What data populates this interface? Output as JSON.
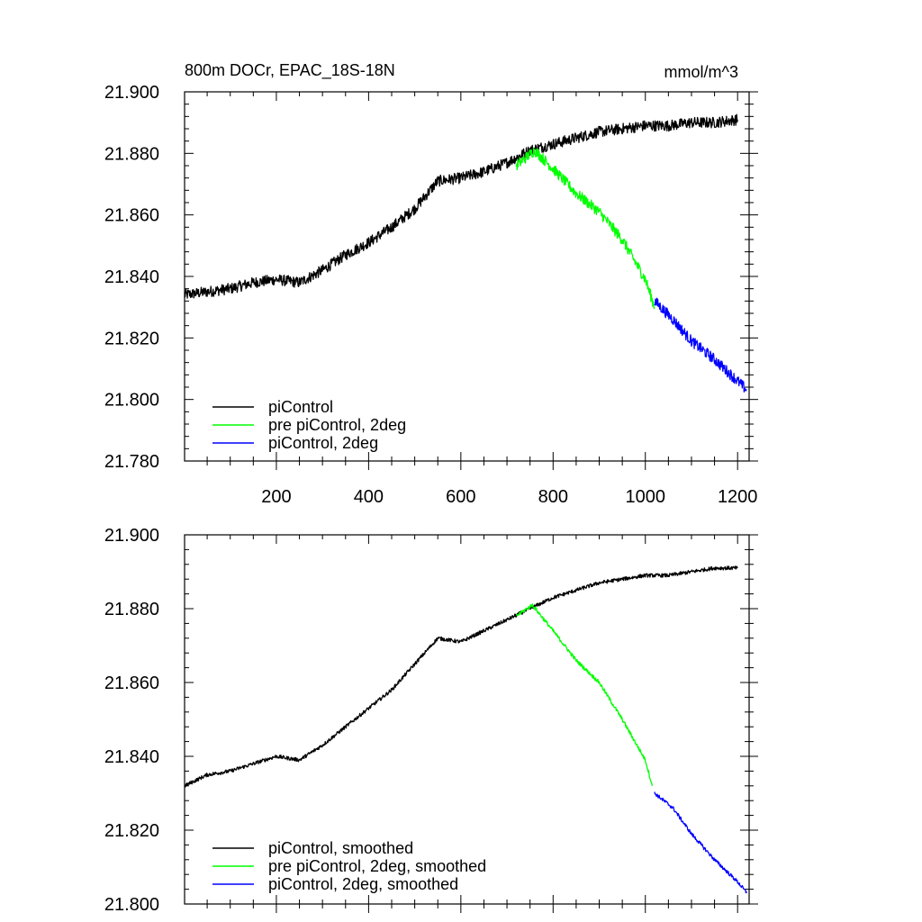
{
  "chart_data": [
    {
      "type": "line",
      "title_left": "800m DOCr, EPAC_18S-18N",
      "title_right": "mmol/m^3",
      "xlabel": "",
      "ylabel": "",
      "xlim": [
        1,
        1225
      ],
      "ylim": [
        21.78,
        21.9
      ],
      "x_ticks": [
        200,
        400,
        600,
        800,
        1000,
        1200
      ],
      "x_tick_labels": [
        "200",
        "400",
        "600",
        "800",
        "1000",
        "1200"
      ],
      "y_ticks": [
        21.78,
        21.8,
        21.82,
        21.84,
        21.86,
        21.88,
        21.9
      ],
      "y_tick_labels": [
        "21.780",
        "21.800",
        "21.820",
        "21.840",
        "21.860",
        "21.880",
        "21.900"
      ],
      "noise": 0.0018,
      "legend_position": "bottom-left",
      "series": [
        {
          "name": "piControl",
          "color": "#000000",
          "points": [
            [
              1,
              21.834
            ],
            [
              50,
              21.835
            ],
            [
              100,
              21.836
            ],
            [
              150,
              21.838
            ],
            [
              200,
              21.839
            ],
            [
              250,
              21.838
            ],
            [
              300,
              21.842
            ],
            [
              350,
              21.847
            ],
            [
              400,
              21.851
            ],
            [
              450,
              21.856
            ],
            [
              500,
              21.862
            ],
            [
              550,
              21.871
            ],
            [
              600,
              21.872
            ],
            [
              650,
              21.874
            ],
            [
              700,
              21.877
            ],
            [
              750,
              21.881
            ],
            [
              800,
              21.883
            ],
            [
              850,
              21.885
            ],
            [
              900,
              21.887
            ],
            [
              950,
              21.888
            ],
            [
              1000,
              21.889
            ],
            [
              1050,
              21.889
            ],
            [
              1100,
              21.89
            ],
            [
              1150,
              21.89
            ],
            [
              1200,
              21.891
            ]
          ]
        },
        {
          "name": "pre piControl, 2deg",
          "color": "#00ff00",
          "points": [
            [
              720,
              21.876
            ],
            [
              760,
              21.881
            ],
            [
              800,
              21.875
            ],
            [
              850,
              21.867
            ],
            [
              900,
              21.861
            ],
            [
              950,
              21.852
            ],
            [
              1000,
              21.839
            ],
            [
              1020,
              21.83
            ]
          ]
        },
        {
          "name": "piControl, 2deg",
          "color": "#0000ff",
          "points": [
            [
              1020,
              21.832
            ],
            [
              1060,
              21.826
            ],
            [
              1100,
              21.819
            ],
            [
              1150,
              21.813
            ],
            [
              1200,
              21.806
            ],
            [
              1220,
              21.803
            ]
          ]
        }
      ]
    },
    {
      "type": "line",
      "xlabel": "",
      "ylabel": "",
      "xlim": [
        1,
        1225
      ],
      "ylim": [
        21.8,
        21.9
      ],
      "x_ticks": [
        200,
        400,
        600,
        800,
        1000,
        1200
      ],
      "y_ticks": [
        21.8,
        21.82,
        21.84,
        21.86,
        21.88,
        21.9
      ],
      "y_tick_labels": [
        "21.800",
        "21.820",
        "21.840",
        "21.860",
        "21.880",
        "21.900"
      ],
      "noise": 0.0005,
      "legend_position": "bottom-left",
      "series": [
        {
          "name": "piControl, smoothed",
          "color": "#000000",
          "points": [
            [
              1,
              21.832
            ],
            [
              50,
              21.835
            ],
            [
              100,
              21.836
            ],
            [
              150,
              21.838
            ],
            [
              200,
              21.84
            ],
            [
              250,
              21.839
            ],
            [
              300,
              21.843
            ],
            [
              350,
              21.848
            ],
            [
              400,
              21.853
            ],
            [
              450,
              21.858
            ],
            [
              500,
              21.865
            ],
            [
              550,
              21.872
            ],
            [
              600,
              21.871
            ],
            [
              650,
              21.874
            ],
            [
              700,
              21.877
            ],
            [
              750,
              21.88
            ],
            [
              800,
              21.883
            ],
            [
              850,
              21.885
            ],
            [
              900,
              21.887
            ],
            [
              950,
              21.888
            ],
            [
              1000,
              21.889
            ],
            [
              1050,
              21.889
            ],
            [
              1100,
              21.89
            ],
            [
              1150,
              21.891
            ],
            [
              1200,
              21.891
            ]
          ]
        },
        {
          "name": "pre piControl, 2deg, smoothed",
          "color": "#00ff00",
          "points": [
            [
              720,
              21.878
            ],
            [
              755,
              21.881
            ],
            [
              800,
              21.874
            ],
            [
              850,
              21.866
            ],
            [
              900,
              21.86
            ],
            [
              950,
              21.85
            ],
            [
              1000,
              21.839
            ],
            [
              1015,
              21.832
            ]
          ]
        },
        {
          "name": "piControl, 2deg, smoothed",
          "color": "#0000ff",
          "points": [
            [
              1020,
              21.83
            ],
            [
              1060,
              21.826
            ],
            [
              1100,
              21.819
            ],
            [
              1150,
              21.812
            ],
            [
              1200,
              21.806
            ],
            [
              1220,
              21.803
            ]
          ]
        }
      ]
    }
  ]
}
